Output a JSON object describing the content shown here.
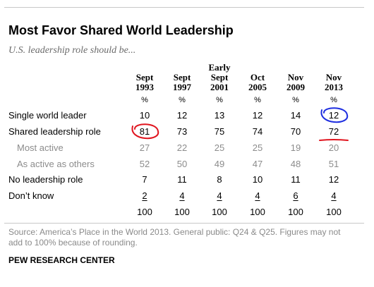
{
  "title": "Most Favor Shared World Leadership",
  "subtitle": "U.S. leadership role should be...",
  "chart_data": {
    "type": "table",
    "columns": [
      {
        "lines": [
          "Sept",
          "1993"
        ]
      },
      {
        "lines": [
          "Sept",
          "1997"
        ]
      },
      {
        "lines": [
          "Early",
          "Sept",
          "2001"
        ]
      },
      {
        "lines": [
          "Oct",
          "2005"
        ]
      },
      {
        "lines": [
          "Nov",
          "2009"
        ]
      },
      {
        "lines": [
          "Nov",
          "2013"
        ]
      }
    ],
    "unit_row": [
      "%",
      "%",
      "%",
      "%",
      "%",
      "%"
    ],
    "rows": [
      {
        "label": "Single world leader",
        "values": [
          "10",
          "12",
          "13",
          "12",
          "14",
          "12"
        ],
        "sub": false
      },
      {
        "label": "Shared leadership role",
        "values": [
          "81",
          "73",
          "75",
          "74",
          "70",
          "72"
        ],
        "sub": false
      },
      {
        "label": "Most active",
        "values": [
          "27",
          "22",
          "25",
          "25",
          "19",
          "20"
        ],
        "sub": true
      },
      {
        "label": "As active as others",
        "values": [
          "52",
          "50",
          "49",
          "47",
          "48",
          "51"
        ],
        "sub": true
      },
      {
        "label": "No leadership role",
        "values": [
          "7",
          "11",
          "8",
          "10",
          "11",
          "12"
        ],
        "sub": false
      },
      {
        "label": "Don’t know",
        "values": [
          "2",
          "4",
          "4",
          "4",
          "6",
          "4"
        ],
        "sub": false,
        "underline": true
      },
      {
        "label": "",
        "values": [
          "100",
          "100",
          "100",
          "100",
          "100",
          "100"
        ],
        "sub": false
      }
    ],
    "annotations": [
      {
        "type": "red-circle",
        "row": 1,
        "col": 0,
        "color": "#e0141e"
      },
      {
        "type": "blue-circle",
        "row": 0,
        "col": 5,
        "color": "#1e2ee0"
      },
      {
        "type": "red-underline",
        "row": 1,
        "col": 5,
        "color": "#e0141e"
      }
    ]
  },
  "note": "Source: America’s Place in the World 2013. General public: Q24 & Q25. Figures may not add to 100% because of rounding.",
  "source_label": "PEW RESEARCH CENTER"
}
